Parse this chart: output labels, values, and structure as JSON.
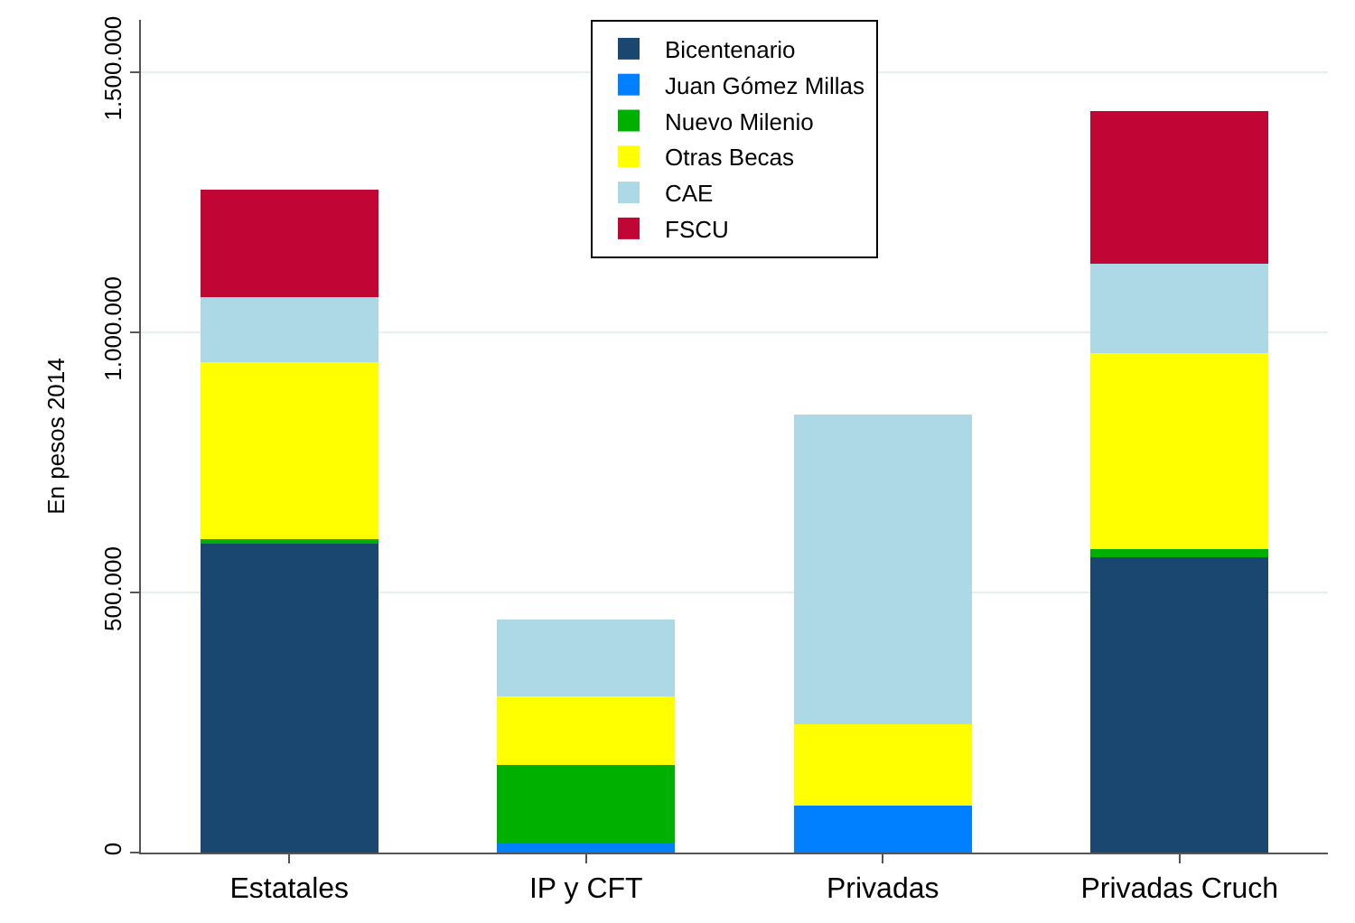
{
  "chart_data": {
    "type": "bar",
    "stacked": true,
    "ylabel": "En pesos 2014",
    "categories": [
      "Estatales",
      "IP y CFT",
      "Privadas",
      "Privadas Cruch"
    ],
    "series": [
      {
        "name": "Bicentenario",
        "color": "#1a476f",
        "values": [
          593000,
          0,
          0,
          568000
        ]
      },
      {
        "name": "Juan Gómez Millas",
        "color": "#0080ff",
        "values": [
          0,
          18000,
          90000,
          0
        ]
      },
      {
        "name": "Nuevo Milenio",
        "color": "#00b000",
        "values": [
          10000,
          150000,
          0,
          15000
        ]
      },
      {
        "name": "Otras Becas",
        "color": "#ffff00",
        "values": [
          340000,
          132000,
          156000,
          377000
        ]
      },
      {
        "name": "CAE",
        "color": "#add8e6",
        "values": [
          125000,
          148000,
          596000,
          171000
        ]
      },
      {
        "name": "FSCU",
        "color": "#c10534",
        "values": [
          205000,
          0,
          0,
          293000
        ]
      }
    ],
    "ylim": [
      0,
      1600000
    ],
    "yticks": [
      {
        "value": 0,
        "label": "0"
      },
      {
        "value": 500000,
        "label": "500.000"
      },
      {
        "value": 1000000,
        "label": "1.000.000"
      },
      {
        "value": 1500000,
        "label": "1.500.000"
      }
    ],
    "grid": "y",
    "legend": "top"
  }
}
